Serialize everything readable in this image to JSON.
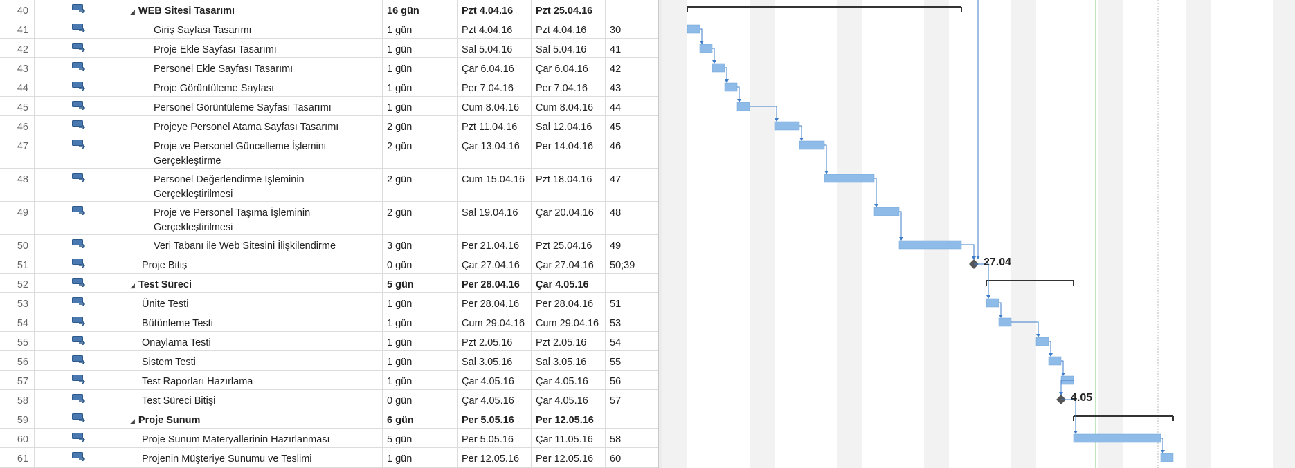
{
  "colors": {
    "bar": "#8fbbe8",
    "bar_stroke": "#6fa3d8",
    "link": "#3d7cc9",
    "milestone": "#555555",
    "summary": "#333333",
    "nonworking": "#f2f2f2",
    "current_date_line": "#2a6fc9",
    "status_line": "#7ccf7c"
  },
  "icons": {
    "task_mode": "auto-scheduled-task-icon",
    "collapse": "collapse-triangle-icon"
  },
  "tasks": [
    {
      "id": "40",
      "name": "WEB Sitesi Tasarımı",
      "duration": "16 gün",
      "start": "Pzt 4.04.16",
      "finish": "Pzt 25.04.16",
      "predecessors": "",
      "summary": true,
      "level": 1,
      "collapse": "◢"
    },
    {
      "id": "41",
      "name": "Giriş Sayfası Tasarımı",
      "duration": "1 gün",
      "start": "Pzt 4.04.16",
      "finish": "Pzt 4.04.16",
      "predecessors": "30",
      "summary": false,
      "level": 3
    },
    {
      "id": "42",
      "name": "Proje Ekle Sayfası Tasarımı",
      "duration": "1 gün",
      "start": "Sal 5.04.16",
      "finish": "Sal 5.04.16",
      "predecessors": "41",
      "summary": false,
      "level": 3
    },
    {
      "id": "43",
      "name": "Personel Ekle Sayfası Tasarımı",
      "duration": "1 gün",
      "start": "Çar 6.04.16",
      "finish": "Çar 6.04.16",
      "predecessors": "42",
      "summary": false,
      "level": 3
    },
    {
      "id": "44",
      "name": "Proje Görüntüleme Sayfası",
      "duration": "1 gün",
      "start": "Per 7.04.16",
      "finish": "Per 7.04.16",
      "predecessors": "43",
      "summary": false,
      "level": 3
    },
    {
      "id": "45",
      "name": "Personel Görüntüleme Sayfası Tasarımı",
      "duration": "1 gün",
      "start": "Cum 8.04.16",
      "finish": "Cum 8.04.16",
      "predecessors": "44",
      "summary": false,
      "level": 3
    },
    {
      "id": "46",
      "name": "Projeye Personel Atama Sayfası Tasarımı",
      "duration": "2 gün",
      "start": "Pzt 11.04.16",
      "finish": "Sal 12.04.16",
      "predecessors": "45",
      "summary": false,
      "level": 3
    },
    {
      "id": "47",
      "name": "Proje ve Personel Güncelleme İşlemini Gerçekleştirme",
      "duration": "2 gün",
      "start": "Çar 13.04.16",
      "finish": "Per 14.04.16",
      "predecessors": "46",
      "summary": false,
      "level": 3
    },
    {
      "id": "48",
      "name": "Personel Değerlendirme İşleminin Gerçekleştirilmesi",
      "duration": "2 gün",
      "start": "Cum 15.04.16",
      "finish": "Pzt 18.04.16",
      "predecessors": "47",
      "summary": false,
      "level": 3
    },
    {
      "id": "49",
      "name": "Proje ve Personel Taşıma İşleminin Gerçekleştirilmesi",
      "duration": "2 gün",
      "start": "Sal 19.04.16",
      "finish": "Çar 20.04.16",
      "predecessors": "48",
      "summary": false,
      "level": 3
    },
    {
      "id": "50",
      "name": "Veri Tabanı ile Web Sitesini İlişkilendirme",
      "duration": "3 gün",
      "start": "Per 21.04.16",
      "finish": "Pzt 25.04.16",
      "predecessors": "49",
      "summary": false,
      "level": 3
    },
    {
      "id": "51",
      "name": "Proje Bitiş",
      "duration": "0 gün",
      "start": "Çar 27.04.16",
      "finish": "Çar 27.04.16",
      "predecessors": "50;39",
      "summary": false,
      "level": 2
    },
    {
      "id": "52",
      "name": "Test Süreci",
      "duration": "5 gün",
      "start": "Per 28.04.16",
      "finish": "Çar 4.05.16",
      "predecessors": "",
      "summary": true,
      "level": 1,
      "collapse": "◢"
    },
    {
      "id": "53",
      "name": "Ünite Testi",
      "duration": "1 gün",
      "start": "Per 28.04.16",
      "finish": "Per 28.04.16",
      "predecessors": "51",
      "summary": false,
      "level": 2
    },
    {
      "id": "54",
      "name": "Bütünleme Testi",
      "duration": "1 gün",
      "start": "Cum 29.04.16",
      "finish": "Cum 29.04.16",
      "predecessors": "53",
      "summary": false,
      "level": 2
    },
    {
      "id": "55",
      "name": "Onaylama Testi",
      "duration": "1 gün",
      "start": "Pzt 2.05.16",
      "finish": "Pzt 2.05.16",
      "predecessors": "54",
      "summary": false,
      "level": 2
    },
    {
      "id": "56",
      "name": "Sistem Testi",
      "duration": "1 gün",
      "start": "Sal 3.05.16",
      "finish": "Sal 3.05.16",
      "predecessors": "55",
      "summary": false,
      "level": 2
    },
    {
      "id": "57",
      "name": "Test Raporları Hazırlama",
      "duration": "1 gün",
      "start": "Çar 4.05.16",
      "finish": "Çar 4.05.16",
      "predecessors": "56",
      "summary": false,
      "level": 2
    },
    {
      "id": "58",
      "name": "Test Süreci Bitişi",
      "duration": "0 gün",
      "start": "Çar 4.05.16",
      "finish": "Çar 4.05.16",
      "predecessors": "57",
      "summary": false,
      "level": 2
    },
    {
      "id": "59",
      "name": "Proje Sunum",
      "duration": "6 gün",
      "start": "Per 5.05.16",
      "finish": "Per 12.05.16",
      "predecessors": "",
      "summary": true,
      "level": 1,
      "collapse": "◢"
    },
    {
      "id": "60",
      "name": "Proje Sunum Materyallerinin Hazırlanması",
      "duration": "5 gün",
      "start": "Per 5.05.16",
      "finish": "Çar 11.05.16",
      "predecessors": "58",
      "summary": false,
      "level": 2
    },
    {
      "id": "61",
      "name": "Projenin Müşteriye Sunumu ve Teslimi",
      "duration": "1 gün",
      "start": "Per 12.05.16",
      "finish": "Per 12.05.16",
      "predecessors": "60",
      "summary": false,
      "level": 2
    }
  ],
  "milestone_labels": {
    "proje_bitis": "27.04",
    "test_sureci_bitisi": "4.05"
  }
}
